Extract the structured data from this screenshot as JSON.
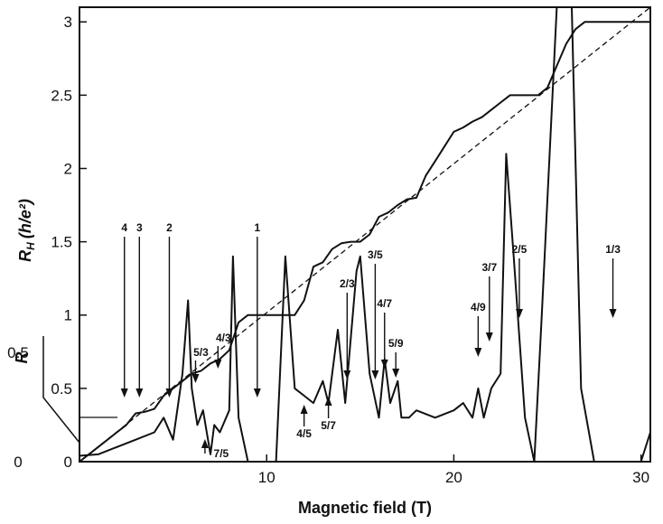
{
  "chart_data": {
    "type": "line",
    "title": "",
    "xlabel": "Magnetic field (T)",
    "ylabel_main": "R",
    "ylabel_sub": "H",
    "ylabel_units": "(h/e²)",
    "ylabel_R": "R",
    "xlim": [
      0,
      30.5
    ],
    "ylim": [
      0,
      3.1
    ],
    "x_ticks": [
      "10",
      "20",
      "30"
    ],
    "y_ticks": [
      "0",
      "0.5",
      "1",
      "1.5",
      "2",
      "2.5",
      "3"
    ],
    "R_axis_ticks": [
      "0",
      "0.5"
    ],
    "grid": false,
    "legend": "none",
    "series": [
      {
        "x": [
          0,
          1,
          2,
          2.5,
          3,
          3.5,
          4,
          4.5,
          5,
          5.5,
          6,
          6.5,
          7,
          7.5,
          8,
          8.5,
          9,
          9.5,
          10,
          10.5,
          11,
          11.5,
          12,
          12.5,
          13,
          13.5,
          14,
          14.5,
          15,
          15.5,
          16,
          16.5,
          17,
          17.5,
          18,
          18.5,
          19,
          19.5,
          20,
          20.5,
          21,
          21.5,
          22,
          22.5,
          23,
          23.5,
          24,
          24.5,
          25,
          25.5,
          26,
          26.5,
          27,
          27.5,
          28,
          28.5,
          29,
          29.5,
          30,
          30.5
        ],
        "y": [
          0,
          0.1,
          0.2,
          0.25,
          0.33,
          0.34,
          0.36,
          0.45,
          0.5,
          0.55,
          0.6,
          0.62,
          0.67,
          0.7,
          0.76,
          0.95,
          1.0,
          1.0,
          1.0,
          1.0,
          1.0,
          1.0,
          1.1,
          1.33,
          1.36,
          1.45,
          1.49,
          1.5,
          1.5,
          1.55,
          1.67,
          1.7,
          1.75,
          1.79,
          1.8,
          1.95,
          2.05,
          2.15,
          2.25,
          2.28,
          2.32,
          2.35,
          2.4,
          2.45,
          2.5,
          2.5,
          2.5,
          2.5,
          2.55,
          2.7,
          2.85,
          2.95,
          3.0,
          3.0,
          3.0,
          3.0,
          3.0,
          3.0,
          3.0,
          3.0
        ]
      },
      {
        "x": [
          0,
          1,
          2,
          3,
          4,
          4.5,
          5,
          5.5,
          5.8,
          6,
          6.3,
          6.6,
          7,
          7.2,
          7.5,
          8,
          8.2,
          8.5,
          9,
          10,
          10.5,
          11,
          11.5,
          12,
          12.5,
          13,
          13.3,
          13.8,
          14.2,
          14.8,
          15,
          15.5,
          16,
          16.3,
          16.6,
          17,
          17.2,
          17.6,
          18,
          19,
          20,
          20.5,
          21,
          21.3,
          21.6,
          22,
          22.5,
          22.8,
          23.2,
          23.8,
          24.3,
          24.7,
          25.5,
          26.3,
          26.8,
          27.5,
          28,
          29,
          29.5,
          30,
          30.5
        ],
        "y": [
          0.04,
          0.05,
          0.1,
          0.15,
          0.2,
          0.3,
          0.15,
          0.6,
          1.1,
          0.5,
          0.25,
          0.35,
          0.05,
          0.25,
          0.2,
          0.35,
          1.4,
          0.3,
          0,
          0,
          0,
          1.4,
          0.5,
          0.45,
          0.4,
          0.55,
          0.4,
          0.9,
          0.4,
          1.3,
          1.4,
          0.6,
          0.3,
          0.7,
          0.4,
          0.55,
          0.3,
          0.3,
          0.35,
          0.3,
          0.35,
          0.4,
          0.3,
          0.5,
          0.3,
          0.5,
          0.6,
          2.1,
          1.4,
          0.3,
          0,
          1.0,
          3.1,
          3.1,
          0.5,
          0,
          0,
          0,
          0,
          0,
          0.2
        ]
      }
    ],
    "reference_line": {
      "x": [
        0,
        30.5
      ],
      "y": [
        0,
        3.1
      ]
    },
    "annotations": {
      "top": [
        {
          "label": "4",
          "x": 2.4
        },
        {
          "label": "3",
          "x": 3.2
        },
        {
          "label": "2",
          "x": 4.8
        },
        {
          "label": "1",
          "x": 9.5
        },
        {
          "label": "2/3",
          "x": 14.3
        },
        {
          "label": "3/5",
          "x": 15.8
        },
        {
          "label": "4/7",
          "x": 16.3
        },
        {
          "label": "5/9",
          "x": 16.9
        },
        {
          "label": "4/9",
          "x": 21.3
        },
        {
          "label": "3/7",
          "x": 21.9
        },
        {
          "label": "2/5",
          "x": 23.5
        },
        {
          "label": "1/3",
          "x": 28.5
        }
      ],
      "side": [
        {
          "label": "5/3",
          "x": 6.2
        },
        {
          "label": "4/3",
          "x": 7.4
        }
      ],
      "bottom": [
        {
          "label": "4/5",
          "x": 12.0
        },
        {
          "label": "5/7",
          "x": 13.3
        },
        {
          "label": "7/5",
          "x": 6.8
        }
      ]
    }
  }
}
